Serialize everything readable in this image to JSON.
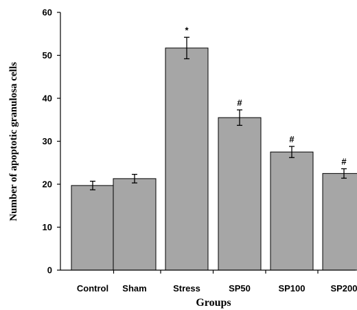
{
  "chart_data": {
    "type": "bar",
    "title": "",
    "xlabel": "Groups",
    "ylabel": "Number of apoptotic granulosa cells",
    "categories": [
      "Control",
      "Sham",
      "Stress",
      "SP50",
      "SP100",
      "SP200"
    ],
    "values": [
      19.7,
      21.3,
      51.7,
      35.5,
      27.5,
      22.5
    ],
    "errors": [
      1.0,
      1.0,
      2.5,
      1.8,
      1.3,
      1.1
    ],
    "annotations": [
      "",
      "",
      "*",
      "#",
      "#",
      "#"
    ],
    "ylim": [
      0,
      60
    ],
    "yticks": [
      0,
      10,
      20,
      30,
      40,
      50,
      60
    ],
    "grid": false,
    "bar_color": "#a6a6a6",
    "bar_edge_color": "#000000"
  }
}
